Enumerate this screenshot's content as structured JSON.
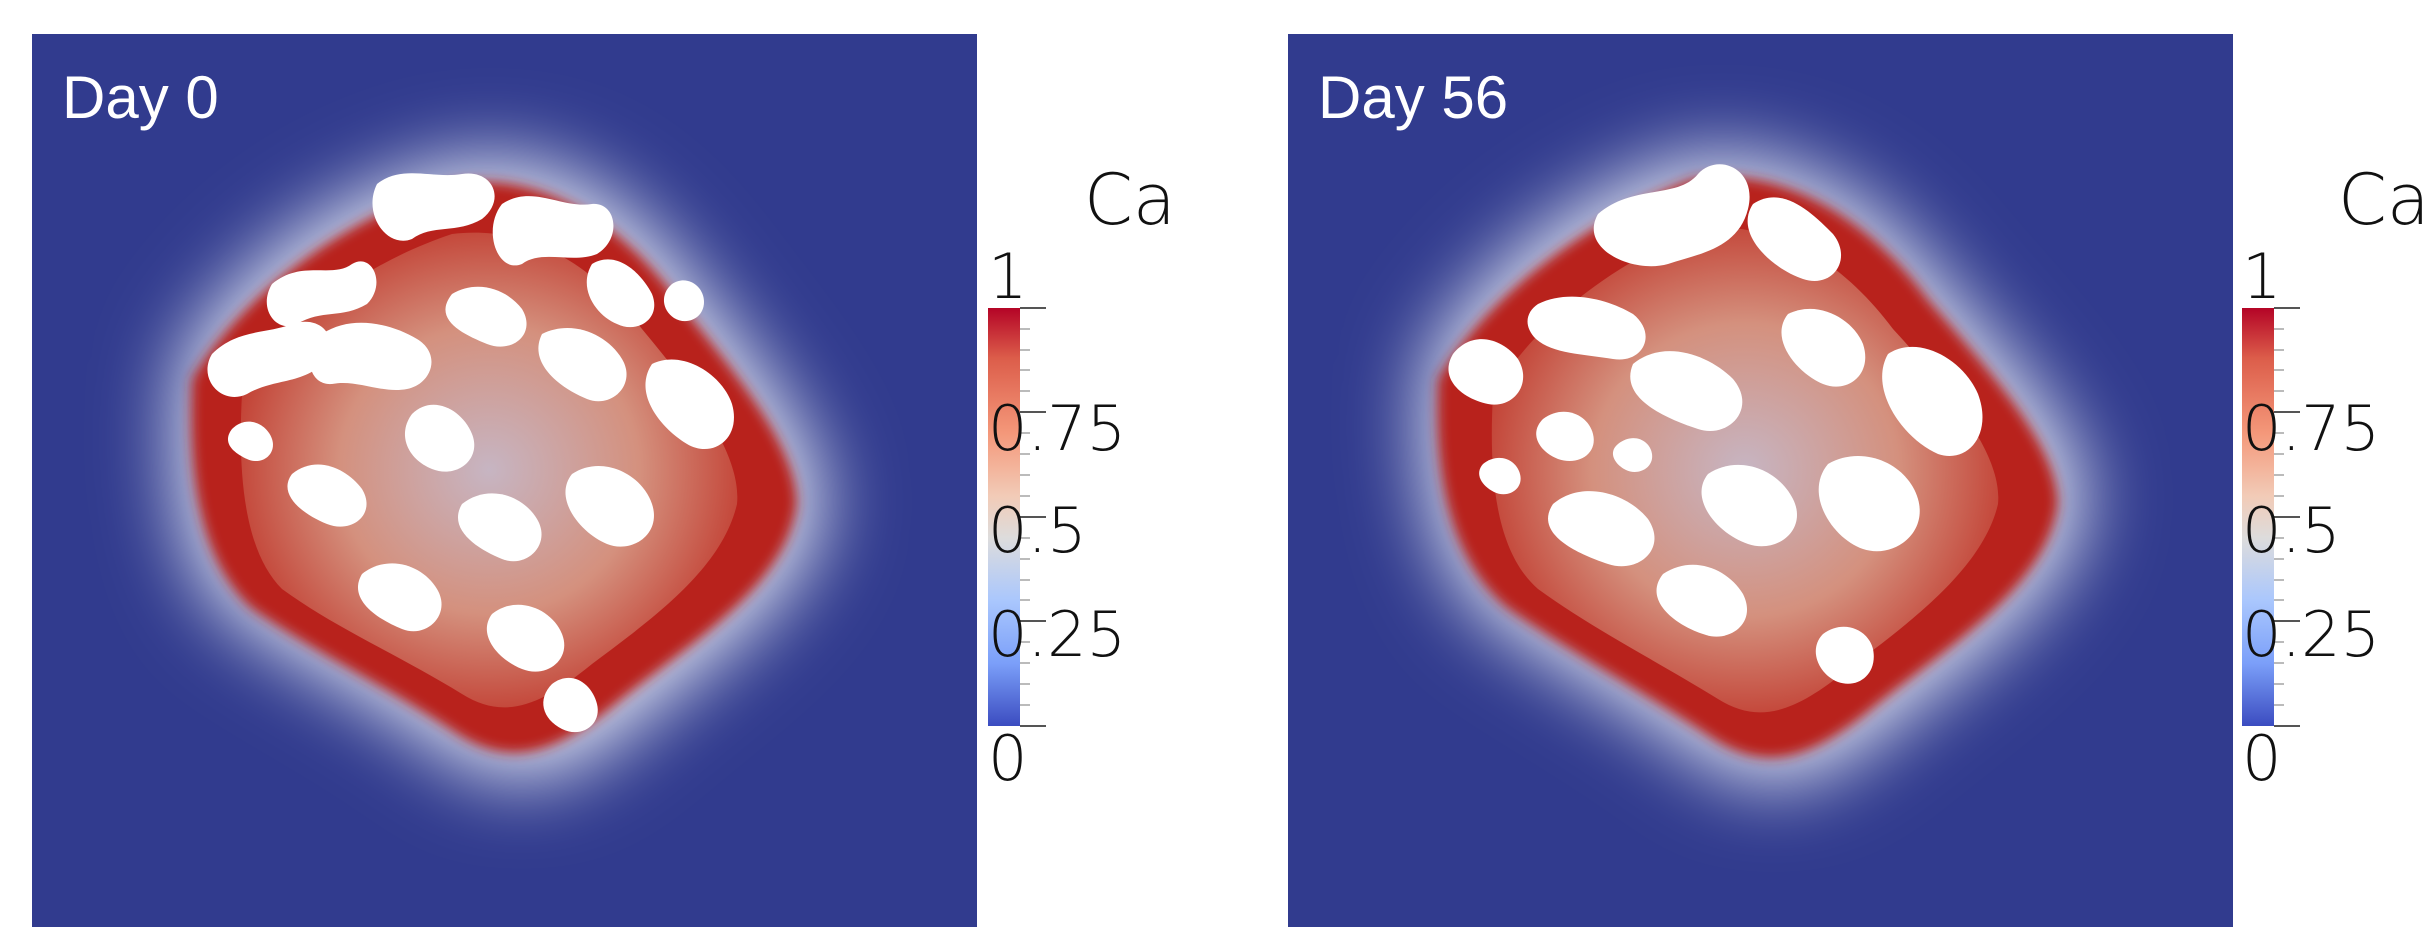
{
  "panels": [
    {
      "label": "Day 0",
      "colormap_title": "Ca",
      "color_min": "#3b4cc0",
      "color_max": "#b40426",
      "background": "#313b8e"
    },
    {
      "label": "Day 56",
      "colormap_title": "Ca",
      "color_min": "#3b4cc0",
      "color_max": "#b40426",
      "background": "#313b8e"
    }
  ],
  "colorbar_ticks": [
    "1",
    "0.75",
    "0.5",
    "0.25",
    "0"
  ]
}
